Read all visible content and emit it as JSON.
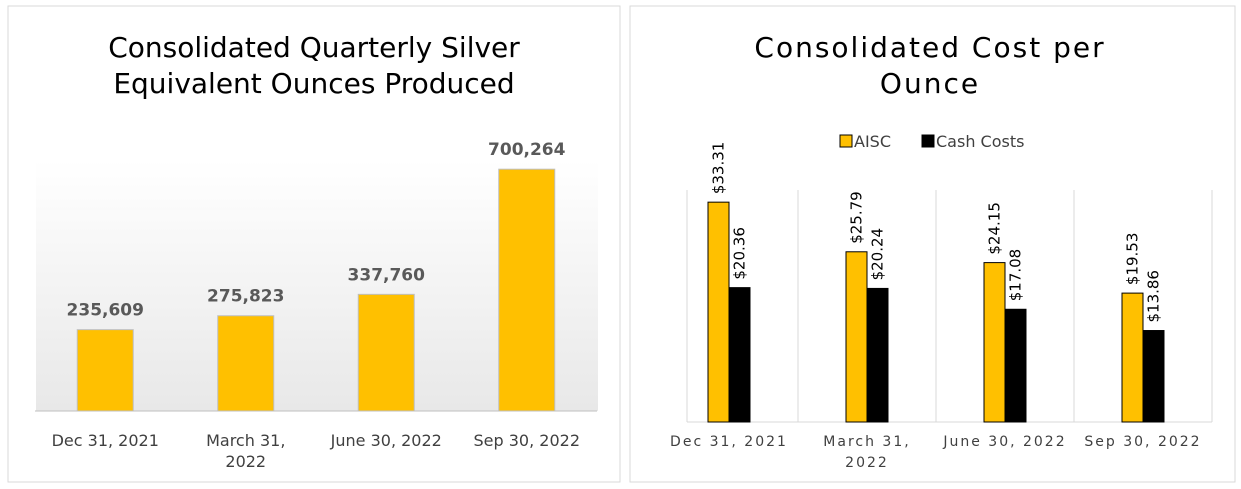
{
  "chart_data": [
    {
      "type": "bar",
      "title": "Consolidated Quarterly Silver Equivalent Ounces Produced",
      "categories": [
        "Dec 31, 2021",
        "March 31, 2022",
        "June 30, 2022",
        "Sep 30, 2022"
      ],
      "values": [
        235609,
        275823,
        337760,
        700264
      ],
      "value_labels": [
        "235,609",
        "275,823",
        "337,760",
        "700,264"
      ],
      "color": "#ffc000",
      "ylim": [
        0,
        750000
      ]
    },
    {
      "type": "grouped_bar",
      "title": "Consolidated Cost per Ounce",
      "categories": [
        "Dec 31, 2021",
        "March 31, 2022",
        "June 30, 2022",
        "Sep 30, 2022"
      ],
      "series": [
        {
          "name": "AISC",
          "color": "#ffc000",
          "values": [
            33.31,
            25.79,
            24.15,
            19.53
          ],
          "value_labels": [
            "$33.31",
            "$25.79",
            "$24.15",
            "$19.53"
          ]
        },
        {
          "name": "Cash Costs",
          "color": "#000000",
          "values": [
            20.36,
            20.24,
            17.08,
            13.86
          ],
          "value_labels": [
            "$20.36",
            "$20.24",
            "$17.08",
            "$13.86"
          ]
        }
      ],
      "ylim": [
        0,
        35
      ],
      "legend": "top"
    }
  ]
}
